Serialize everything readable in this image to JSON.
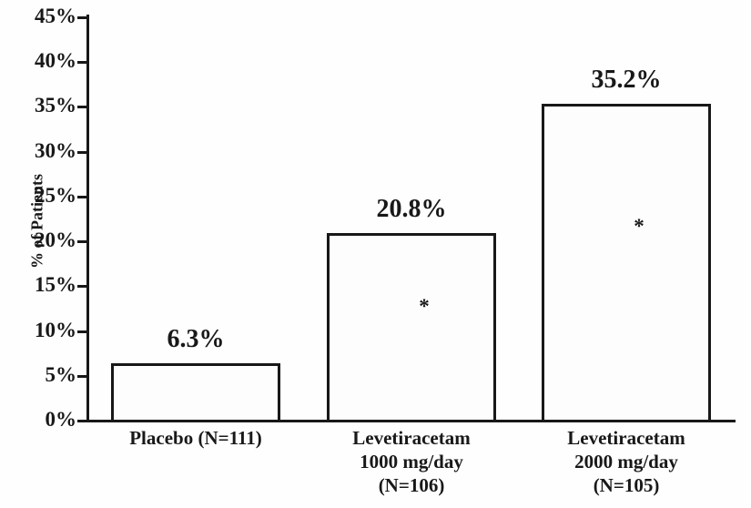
{
  "chart_data": {
    "type": "bar",
    "title": "",
    "ylabel": "% of Patients",
    "xlabel": "",
    "ylim": [
      0,
      45
    ],
    "ytick_step": 5,
    "ytick_labels": [
      "0%",
      "5%",
      "10%",
      "15%",
      "20%",
      "25%",
      "30%",
      "35%",
      "40%",
      "45%"
    ],
    "categories": [
      "Placebo (N=111)",
      "Levetiracetam 1000 mg/day (N=106)",
      "Levetiracetam 2000 mg/day (N=105)"
    ],
    "category_lines": [
      [
        "Placebo (N=111)"
      ],
      [
        "Levetiracetam",
        "1000 mg/day",
        "(N=106)"
      ],
      [
        "Levetiracetam",
        "2000 mg/day",
        "(N=105)"
      ]
    ],
    "values": [
      6.3,
      20.8,
      35.2
    ],
    "value_labels": [
      "6.3%",
      "20.8%",
      "35.2%"
    ],
    "significance_markers": [
      "",
      "*",
      "*"
    ],
    "legend_position": "none",
    "grid": false,
    "colors": {
      "bar_fill": "#fdfdfd",
      "bar_border": "#181818",
      "text": "#181818",
      "background": "#fefefe"
    }
  }
}
